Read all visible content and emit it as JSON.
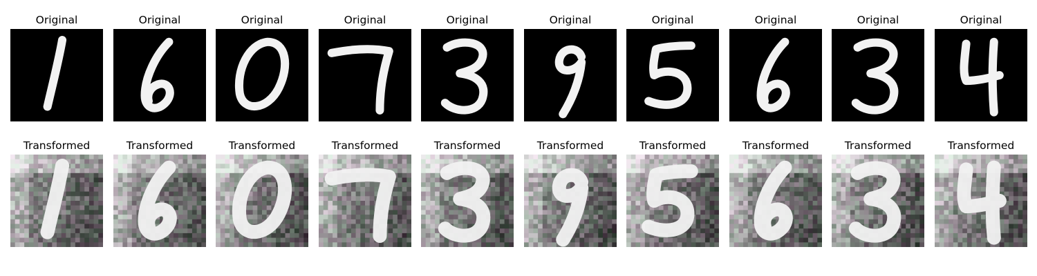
{
  "rows": [
    {
      "name": "original",
      "title": "Original",
      "digits": [
        "1",
        "6",
        "0",
        "7",
        "3",
        "9",
        "5",
        "6",
        "3",
        "4"
      ],
      "style": "clean handwritten digit, white stroke on black background"
    },
    {
      "name": "transformed",
      "title": "Transformed",
      "digits": [
        "1",
        "6",
        "0",
        "7",
        "3",
        "9",
        "5",
        "6",
        "3",
        "4"
      ],
      "style": "noisy grey/white background with blurred bright digit"
    }
  ],
  "colors": {
    "original_bg": "#000000",
    "stroke": "#f2f2f2",
    "transformed_bg": "#8a8a8e"
  }
}
